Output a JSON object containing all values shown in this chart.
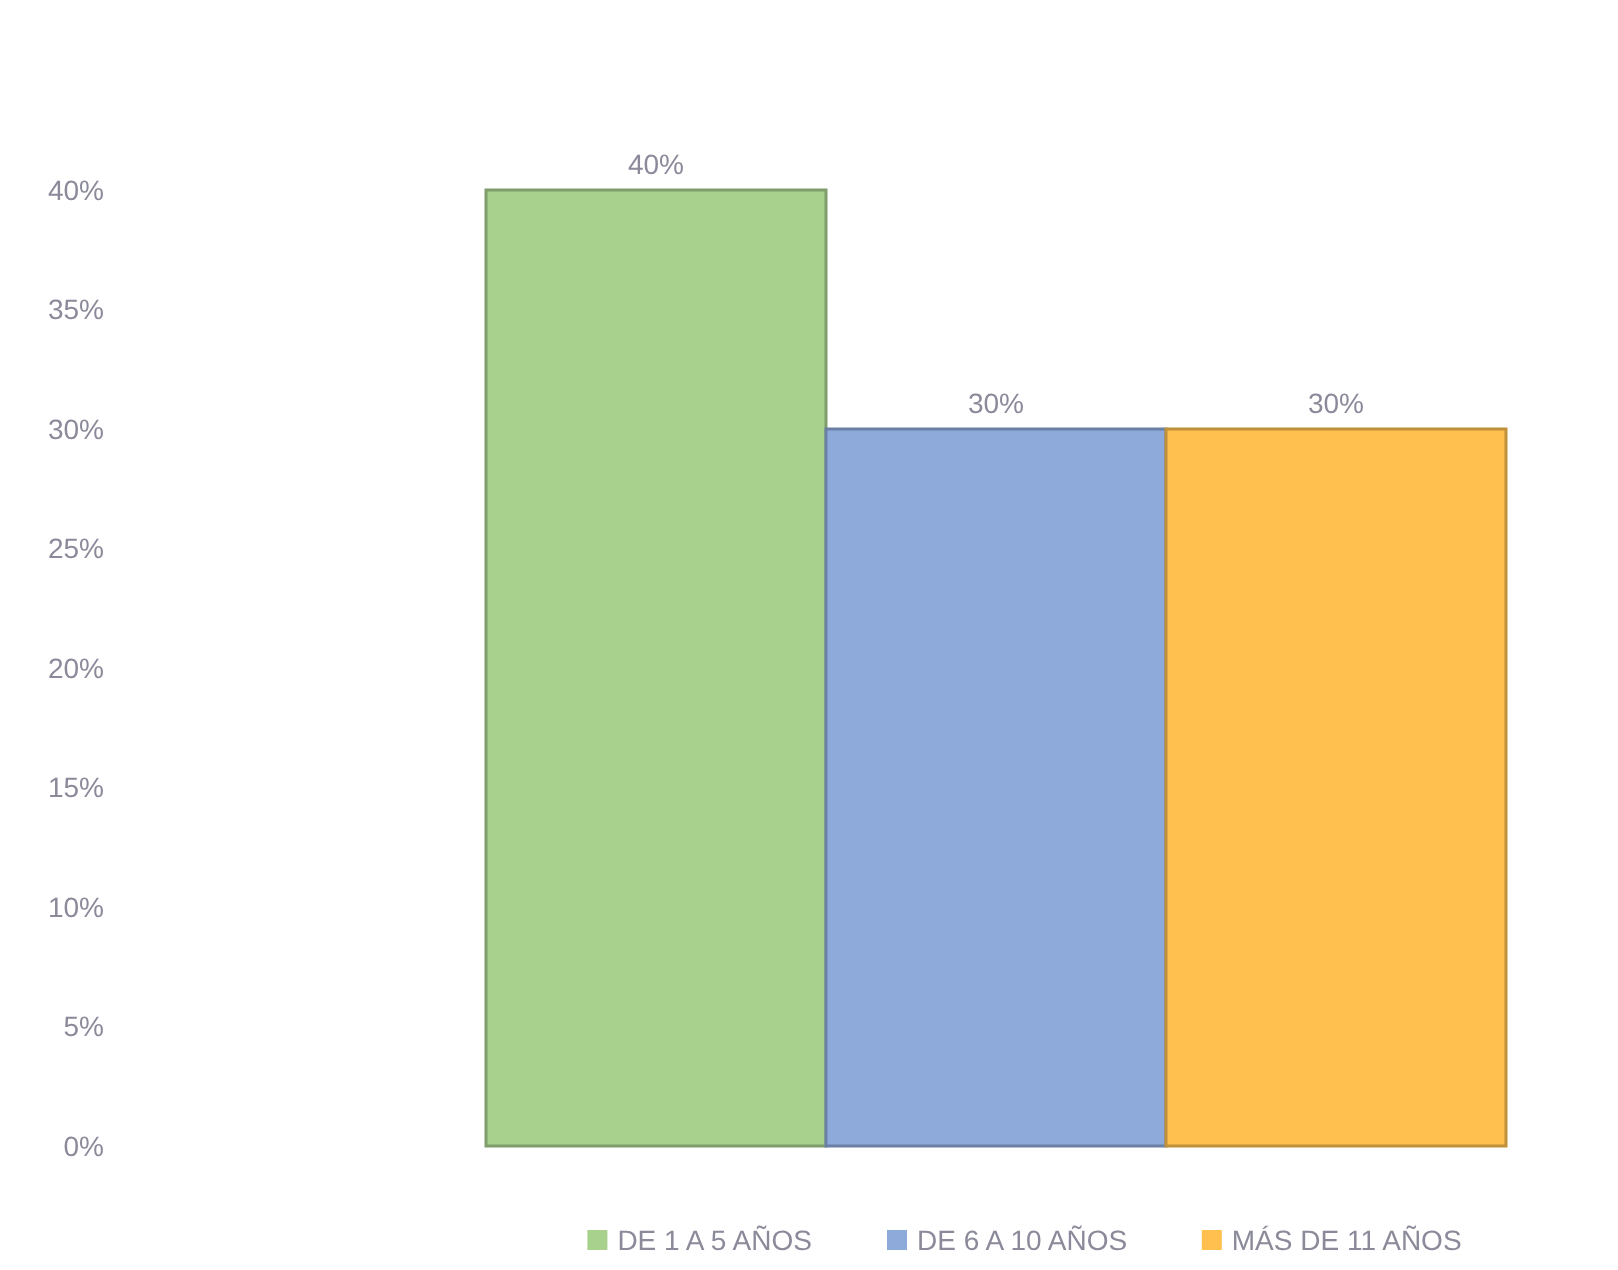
{
  "chart_data": {
    "type": "bar",
    "categories": [
      null
    ],
    "series": [
      {
        "name": "DE 1 A 5 AÑOS",
        "color": "#a9d18e",
        "values": [
          40
        ],
        "value_labels": [
          "40%"
        ]
      },
      {
        "name": "DE 6 A 10 AÑOS",
        "color": "#8eaadb",
        "values": [
          30
        ],
        "value_labels": [
          "30%"
        ]
      },
      {
        "name": "MÁS DE 11 AÑOS",
        "color": "#ffc04f",
        "values": [
          30
        ],
        "value_labels": [
          "30%"
        ]
      }
    ],
    "ylim": [
      0,
      40
    ],
    "yticks": [
      {
        "value": 0,
        "label": "0%"
      },
      {
        "value": 5,
        "label": "5%"
      },
      {
        "value": 10,
        "label": "10%"
      },
      {
        "value": 15,
        "label": "15%"
      },
      {
        "value": 20,
        "label": "20%"
      },
      {
        "value": 25,
        "label": "25%"
      },
      {
        "value": 30,
        "label": "30%"
      },
      {
        "value": 35,
        "label": "35%"
      },
      {
        "value": 40,
        "label": "40%"
      }
    ],
    "legend": "bottom"
  }
}
